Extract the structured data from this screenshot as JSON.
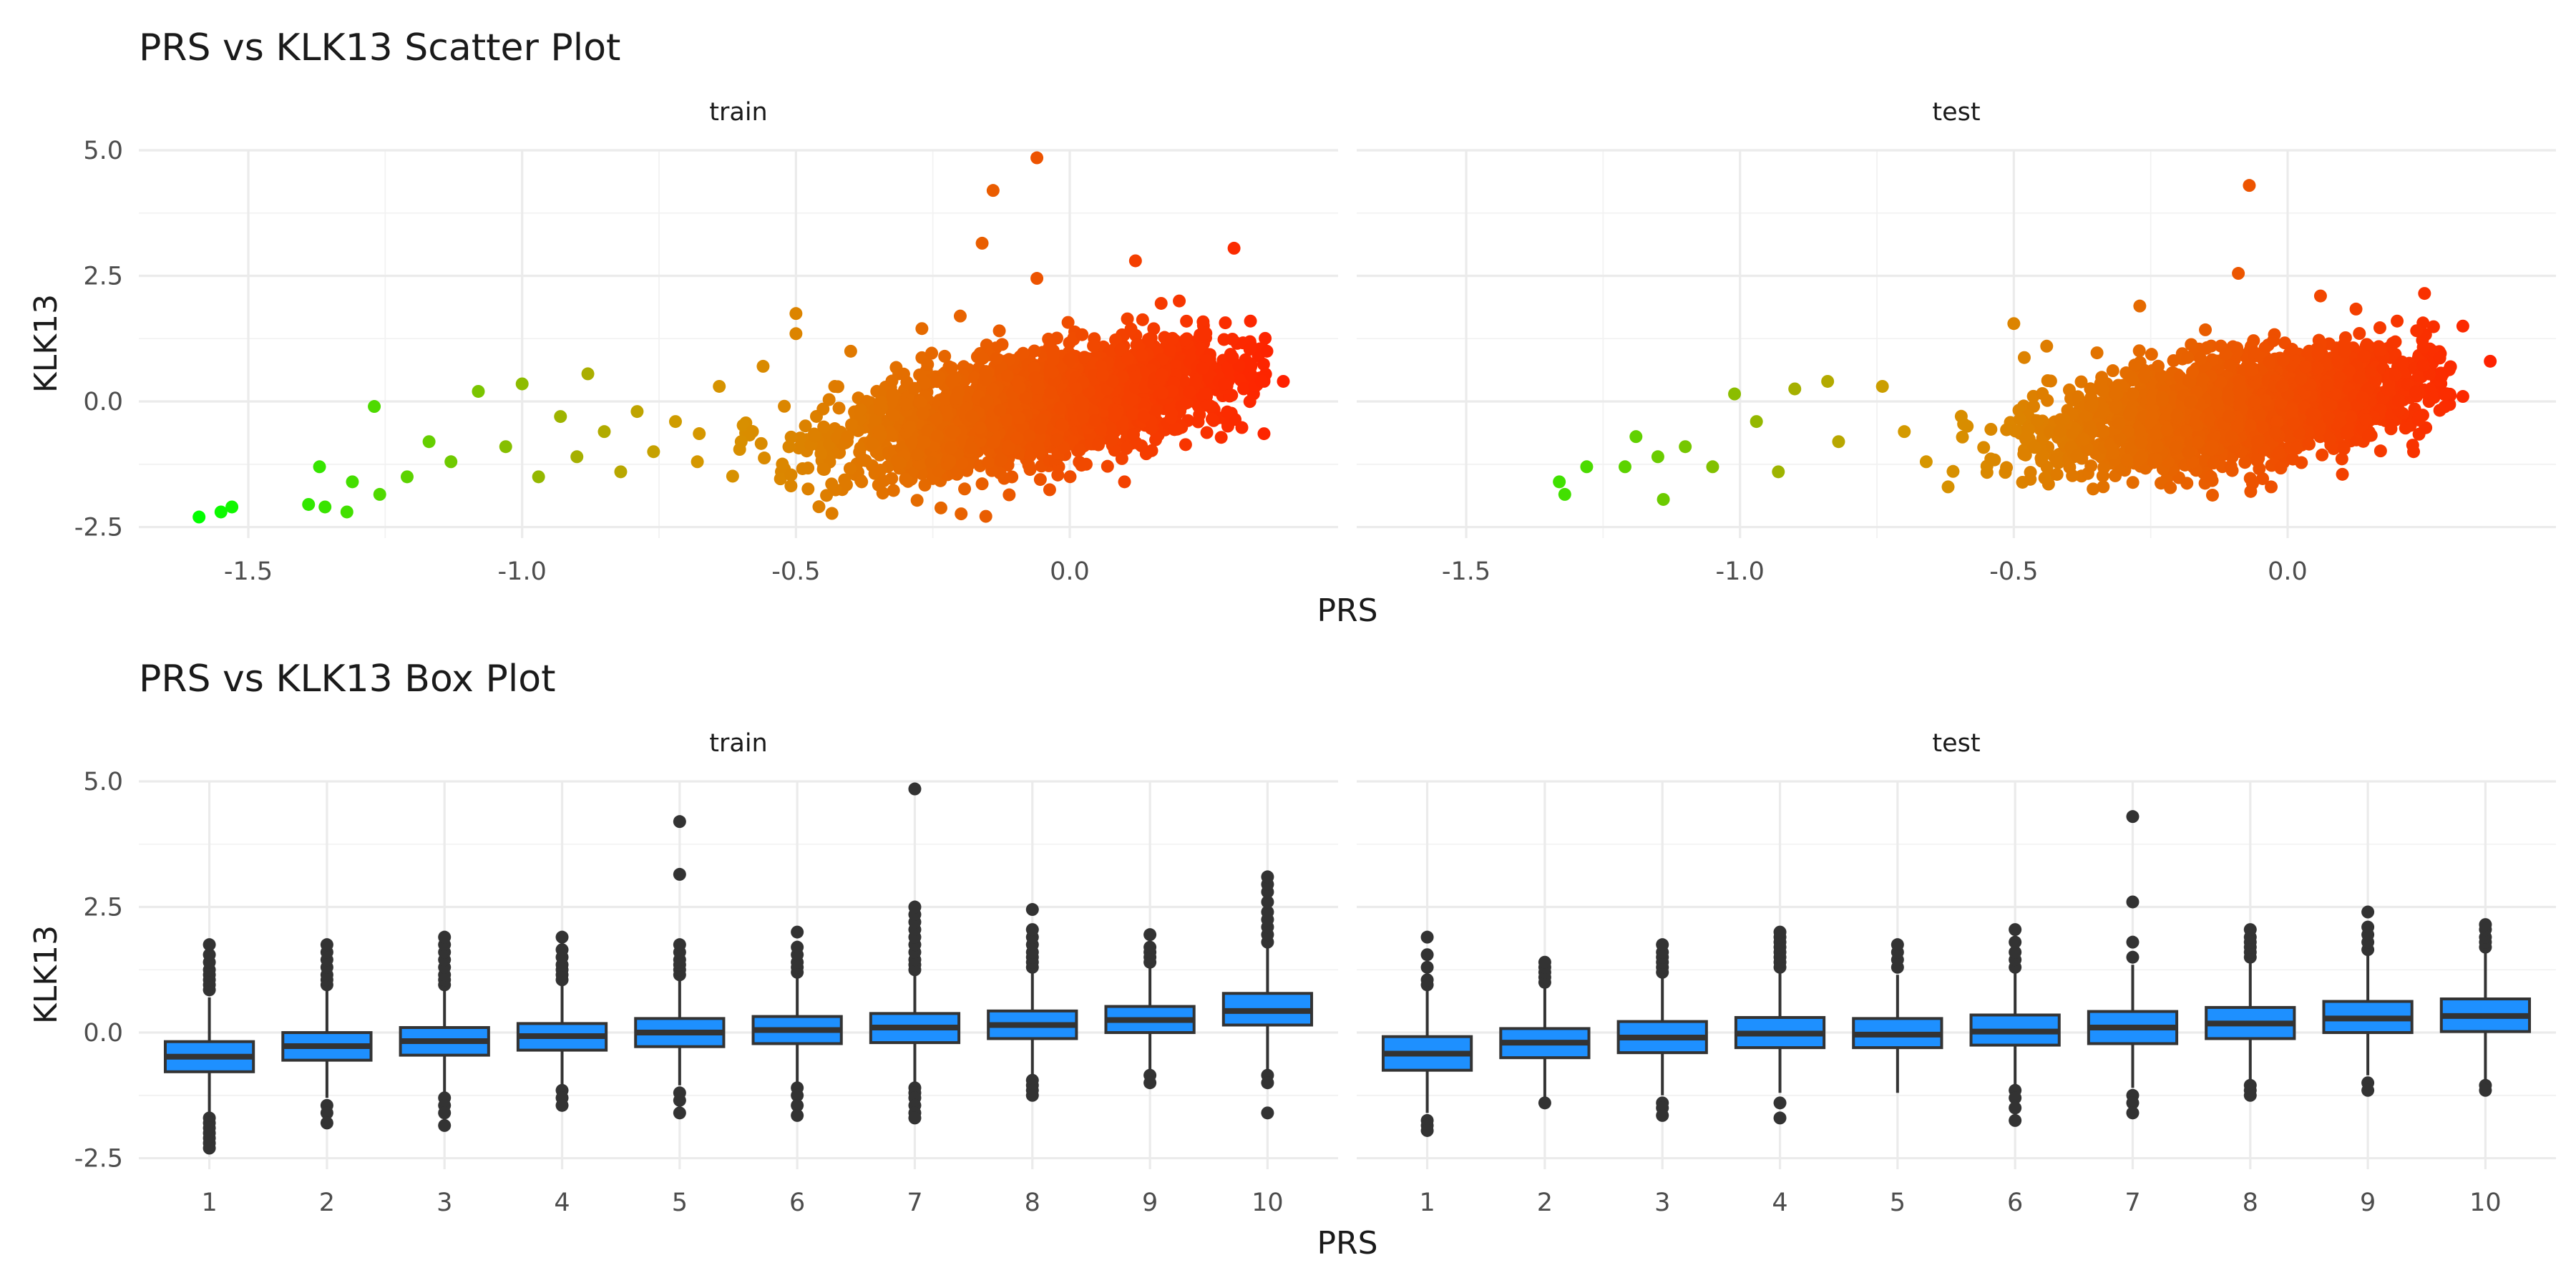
{
  "chart_data": [
    {
      "type": "scatter",
      "title": "PRS vs KLK13 Scatter Plot",
      "xlabel": "PRS",
      "ylabel": "KLK13",
      "xlim": [
        -1.7,
        0.49
      ],
      "ylim": [
        -2.5,
        5.0
      ],
      "xticks": [
        -1.5,
        -1.0,
        -0.5,
        0.0
      ],
      "xtick_labels": [
        "-1.5",
        "-1.0",
        "-0.5",
        "0.0"
      ],
      "yticks": [
        -2.5,
        0.0,
        2.5,
        5.0
      ],
      "ytick_labels": [
        "-2.5",
        "0.0",
        "2.5",
        "5.0"
      ],
      "grid": true,
      "legend": "none",
      "color_scale": {
        "low": "#00ff00",
        "mid": "#d49a00",
        "high": "#ff2000"
      },
      "facets": [
        {
          "name": "train",
          "points": [
            {
              "x": -1.59,
              "y": -2.3
            },
            {
              "x": -1.55,
              "y": -2.2
            },
            {
              "x": -1.53,
              "y": -2.1
            },
            {
              "x": -1.39,
              "y": -2.05
            },
            {
              "x": -1.36,
              "y": -2.1
            },
            {
              "x": -1.32,
              "y": -2.2
            },
            {
              "x": -1.37,
              "y": -1.3
            },
            {
              "x": -1.31,
              "y": -1.6
            },
            {
              "x": -1.26,
              "y": -1.85
            },
            {
              "x": -1.27,
              "y": -0.1
            },
            {
              "x": -1.21,
              "y": -1.5
            },
            {
              "x": -1.17,
              "y": -0.8
            },
            {
              "x": -1.13,
              "y": -1.2
            },
            {
              "x": -1.08,
              "y": 0.2
            },
            {
              "x": -1.03,
              "y": -0.9
            },
            {
              "x": -1.0,
              "y": 0.35
            },
            {
              "x": -0.97,
              "y": -1.5
            },
            {
              "x": -0.93,
              "y": -0.3
            },
            {
              "x": -0.9,
              "y": -1.1
            },
            {
              "x": -0.88,
              "y": 0.55
            },
            {
              "x": -0.85,
              "y": -0.6
            },
            {
              "x": -0.82,
              "y": -1.4
            },
            {
              "x": -0.79,
              "y": -0.2
            },
            {
              "x": -0.76,
              "y": -1.0
            },
            {
              "x": -0.72,
              "y": -0.4
            },
            {
              "x": -0.68,
              "y": -1.2
            },
            {
              "x": -0.64,
              "y": 0.3
            },
            {
              "x": -0.6,
              "y": -0.8
            },
            {
              "x": -0.56,
              "y": 0.7
            },
            {
              "x": -0.5,
              "y": 1.75
            },
            {
              "x": -0.45,
              "y": -1.35
            },
            {
              "x": -0.5,
              "y": 1.35
            },
            {
              "x": -0.4,
              "y": 1.0
            },
            {
              "x": -0.38,
              "y": -1.6
            },
            {
              "x": -0.3,
              "y": -1.55
            },
            {
              "x": -0.27,
              "y": 1.45
            },
            {
              "x": -0.2,
              "y": 1.7
            },
            {
              "x": -0.14,
              "y": 4.2
            },
            {
              "x": -0.16,
              "y": 3.15
            },
            {
              "x": -0.06,
              "y": 4.85
            },
            {
              "x": -0.06,
              "y": 2.45
            },
            {
              "x": 0.03,
              "y": -1.25
            },
            {
              "x": 0.1,
              "y": -1.6
            },
            {
              "x": 0.12,
              "y": 2.8
            },
            {
              "x": 0.2,
              "y": 2.0
            },
            {
              "x": 0.3,
              "y": 3.05
            },
            {
              "x": 0.35,
              "y": 0.4
            },
            {
              "x": 0.39,
              "y": 0.4
            },
            {
              "x": 0.33,
              "y": 1.6
            },
            {
              "x": 0.26,
              "y": -0.35
            },
            {
              "x": 0.36,
              "y": 1.0
            }
          ],
          "dense_region": {
            "x_mean": -0.05,
            "x_sd": 0.18,
            "x_min": -0.75,
            "x_max": 0.36,
            "slope": 1.8,
            "intercept": 0.0,
            "y_sd": 0.5
          }
        },
        {
          "name": "test",
          "points": [
            {
              "x": -1.33,
              "y": -1.6
            },
            {
              "x": -1.32,
              "y": -1.85
            },
            {
              "x": -1.28,
              "y": -1.3
            },
            {
              "x": -1.21,
              "y": -1.3
            },
            {
              "x": -1.19,
              "y": -0.7
            },
            {
              "x": -1.15,
              "y": -1.1
            },
            {
              "x": -1.14,
              "y": -1.95
            },
            {
              "x": -1.1,
              "y": -0.9
            },
            {
              "x": -1.05,
              "y": -1.3
            },
            {
              "x": -1.01,
              "y": 0.15
            },
            {
              "x": -0.97,
              "y": -0.4
            },
            {
              "x": -0.93,
              "y": -1.4
            },
            {
              "x": -0.9,
              "y": 0.25
            },
            {
              "x": -0.84,
              "y": 0.4
            },
            {
              "x": -0.82,
              "y": -0.8
            },
            {
              "x": -0.74,
              "y": 0.3
            },
            {
              "x": -0.7,
              "y": -0.6
            },
            {
              "x": -0.66,
              "y": -1.2
            },
            {
              "x": -0.62,
              "y": -1.7
            },
            {
              "x": -0.5,
              "y": 1.55
            },
            {
              "x": -0.47,
              "y": -1.55
            },
            {
              "x": -0.44,
              "y": 1.1
            },
            {
              "x": -0.27,
              "y": 1.9
            },
            {
              "x": -0.14,
              "y": -1.5
            },
            {
              "x": -0.07,
              "y": 4.3
            },
            {
              "x": -0.09,
              "y": 2.55
            },
            {
              "x": -0.03,
              "y": -1.7
            },
            {
              "x": 0.06,
              "y": 2.1
            },
            {
              "x": 0.1,
              "y": -1.45
            },
            {
              "x": 0.2,
              "y": 1.6
            },
            {
              "x": 0.25,
              "y": 2.15
            },
            {
              "x": 0.32,
              "y": 1.5
            },
            {
              "x": 0.37,
              "y": 0.8
            },
            {
              "x": 0.32,
              "y": 0.1
            },
            {
              "x": 0.23,
              "y": -1.0
            }
          ],
          "dense_region": {
            "x_mean": -0.08,
            "x_sd": 0.17,
            "x_min": -0.65,
            "x_max": 0.3,
            "slope": 1.5,
            "intercept": 0.0,
            "y_sd": 0.5
          }
        }
      ]
    },
    {
      "type": "box",
      "title": "PRS vs KLK13 Box Plot",
      "xlabel": "PRS",
      "ylabel": "KLK13",
      "categories": [
        "1",
        "2",
        "3",
        "4",
        "5",
        "6",
        "7",
        "8",
        "9",
        "10"
      ],
      "ylim": [
        -2.5,
        5.0
      ],
      "yticks": [
        -2.5,
        0.0,
        2.5,
        5.0
      ],
      "ytick_labels": [
        "-2.5",
        "0.0",
        "2.5",
        "5.0"
      ],
      "grid": true,
      "box_color": "#1e90ff",
      "facets": [
        {
          "name": "train",
          "boxes": [
            {
              "q1": -0.78,
              "median": -0.48,
              "q3": -0.18,
              "lower": -1.6,
              "upper": 0.7,
              "outliers": [
                0.85,
                0.95,
                1.05,
                1.15,
                1.25,
                1.4,
                1.55,
                1.75,
                -1.7,
                -1.8,
                -1.9,
                -2.0,
                -2.1,
                -2.2,
                -2.3
              ]
            },
            {
              "q1": -0.55,
              "median": -0.27,
              "q3": 0.0,
              "lower": -1.3,
              "upper": 0.85,
              "outliers": [
                0.95,
                1.05,
                1.15,
                1.3,
                1.45,
                1.6,
                1.75,
                -1.45,
                -1.6,
                -1.8
              ]
            },
            {
              "q1": -0.45,
              "median": -0.17,
              "q3": 0.1,
              "lower": -1.2,
              "upper": 0.85,
              "outliers": [
                0.95,
                1.05,
                1.15,
                1.3,
                1.45,
                1.6,
                1.75,
                1.9,
                -1.3,
                -1.45,
                -1.6,
                -1.85
              ]
            },
            {
              "q1": -0.35,
              "median": -0.07,
              "q3": 0.18,
              "lower": -1.05,
              "upper": 0.95,
              "outliers": [
                1.05,
                1.15,
                1.25,
                1.35,
                1.5,
                1.65,
                1.9,
                -1.15,
                -1.3,
                -1.45
              ]
            },
            {
              "q1": -0.28,
              "median": 0.0,
              "q3": 0.28,
              "lower": -1.05,
              "upper": 1.05,
              "outliers": [
                1.15,
                1.25,
                1.35,
                1.45,
                1.6,
                1.75,
                3.15,
                4.2,
                -1.2,
                -1.35,
                -1.6
              ]
            },
            {
              "q1": -0.22,
              "median": 0.05,
              "q3": 0.32,
              "lower": -1.0,
              "upper": 1.1,
              "outliers": [
                1.2,
                1.3,
                1.4,
                1.55,
                1.7,
                2.0,
                -1.1,
                -1.25,
                -1.45,
                -1.65
              ]
            },
            {
              "q1": -0.2,
              "median": 0.1,
              "q3": 0.38,
              "lower": -1.0,
              "upper": 1.15,
              "outliers": [
                1.25,
                1.35,
                1.45,
                1.6,
                1.75,
                1.9,
                2.05,
                2.2,
                2.35,
                2.5,
                4.85,
                -1.1,
                -1.2,
                -1.3,
                -1.45,
                -1.6,
                -1.7
              ]
            },
            {
              "q1": -0.12,
              "median": 0.15,
              "q3": 0.43,
              "lower": -0.85,
              "upper": 1.2,
              "outliers": [
                1.3,
                1.4,
                1.5,
                1.6,
                1.75,
                1.9,
                2.05,
                2.45,
                -0.95,
                -1.05,
                -1.15,
                -1.25
              ]
            },
            {
              "q1": 0.0,
              "median": 0.25,
              "q3": 0.52,
              "lower": -0.75,
              "upper": 1.3,
              "outliers": [
                1.4,
                1.5,
                1.6,
                1.7,
                1.95,
                -0.85,
                -1.0
              ]
            },
            {
              "q1": 0.15,
              "median": 0.43,
              "q3": 0.78,
              "lower": -0.75,
              "upper": 1.7,
              "outliers": [
                1.8,
                1.95,
                2.1,
                2.25,
                2.4,
                2.6,
                2.8,
                2.95,
                3.1,
                -0.85,
                -1.0,
                -1.6
              ]
            }
          ]
        },
        {
          "name": "test",
          "boxes": [
            {
              "q1": -0.75,
              "median": -0.42,
              "q3": -0.08,
              "lower": -1.6,
              "upper": 0.85,
              "outliers": [
                0.95,
                1.05,
                1.3,
                1.55,
                1.9,
                -1.75,
                -1.85,
                -1.95
              ]
            },
            {
              "q1": -0.5,
              "median": -0.2,
              "q3": 0.08,
              "lower": -1.35,
              "upper": 0.9,
              "outliers": [
                1.0,
                1.1,
                1.2,
                1.3,
                1.4,
                -1.4
              ]
            },
            {
              "q1": -0.4,
              "median": -0.1,
              "q3": 0.22,
              "lower": -1.25,
              "upper": 1.1,
              "outliers": [
                1.2,
                1.3,
                1.4,
                1.5,
                1.6,
                1.75,
                -1.4,
                -1.5,
                -1.65
              ]
            },
            {
              "q1": -0.3,
              "median": -0.02,
              "q3": 0.3,
              "lower": -1.2,
              "upper": 1.2,
              "outliers": [
                1.3,
                1.4,
                1.5,
                1.6,
                1.7,
                1.8,
                1.9,
                2.0,
                -1.4,
                -1.7
              ]
            },
            {
              "q1": -0.3,
              "median": -0.04,
              "q3": 0.28,
              "lower": -1.2,
              "upper": 1.15,
              "outliers": [
                1.3,
                1.45,
                1.6,
                1.75
              ]
            },
            {
              "q1": -0.25,
              "median": 0.02,
              "q3": 0.35,
              "lower": -1.05,
              "upper": 1.2,
              "outliers": [
                1.3,
                1.45,
                1.6,
                1.8,
                2.05,
                -1.15,
                -1.3,
                -1.5,
                -1.75
              ]
            },
            {
              "q1": -0.22,
              "median": 0.1,
              "q3": 0.42,
              "lower": -1.1,
              "upper": 1.35,
              "outliers": [
                1.5,
                1.8,
                2.6,
                4.3,
                -1.25,
                -1.4,
                -1.6
              ]
            },
            {
              "q1": -0.12,
              "median": 0.18,
              "q3": 0.5,
              "lower": -0.95,
              "upper": 1.4,
              "outliers": [
                1.5,
                1.6,
                1.7,
                1.8,
                1.9,
                2.05,
                -1.05,
                -1.15,
                -1.25
              ]
            },
            {
              "q1": 0.0,
              "median": 0.28,
              "q3": 0.62,
              "lower": -0.85,
              "upper": 1.55,
              "outliers": [
                1.65,
                1.8,
                1.95,
                2.1,
                2.4,
                -1.0,
                -1.15
              ]
            },
            {
              "q1": 0.02,
              "median": 0.33,
              "q3": 0.67,
              "lower": -0.95,
              "upper": 1.6,
              "outliers": [
                1.7,
                1.8,
                1.9,
                2.05,
                2.15,
                -1.05,
                -1.15
              ]
            }
          ]
        }
      ]
    }
  ]
}
